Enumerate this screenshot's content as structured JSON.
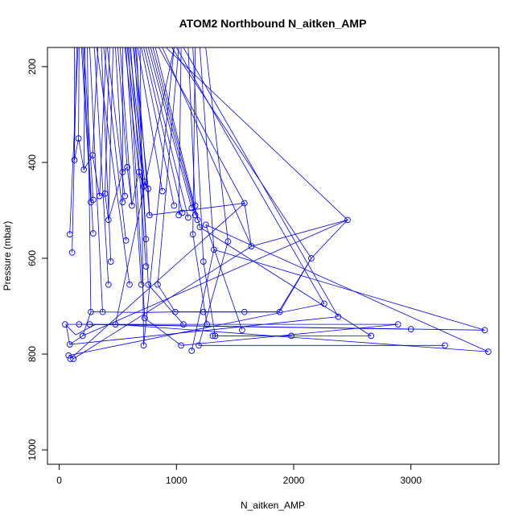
{
  "chart_data": {
    "type": "line",
    "title": "ATOM2 Northbound N_aitken_AMP",
    "xlabel": "N_aitken_AMP",
    "ylabel": "Pressure (mbar)",
    "xlim": [
      -100,
      3750
    ],
    "ylim": [
      160,
      1030
    ],
    "y_reversed": true,
    "grid": false,
    "legend": "none",
    "color": "#0000ff",
    "xticks": [
      0,
      1000,
      2000,
      3000
    ],
    "yticks": [
      200,
      400,
      600,
      800,
      1000
    ],
    "series": [
      {
        "x": [
          130,
          165,
          210,
          285,
          345,
          390,
          420,
          540,
          580,
          620,
          680,
          720,
          730,
          760,
          770,
          1580,
          1640,
          2460,
          2150,
          1870,
          1560,
          980,
          720,
          330,
          270,
          200,
          90,
          60,
          140,
          310
        ],
        "y": [
          395,
          350,
          415,
          385,
          470,
          465,
          520,
          420,
          410,
          490,
          420,
          450,
          440,
          455,
          510,
          485,
          575,
          520,
          600,
          712,
          712,
          712,
          713,
          712,
          712,
          762,
          780,
          740,
          760,
          738
        ]
      }
    ],
    "points": [
      [
        130,
        395
      ],
      [
        165,
        350
      ],
      [
        210,
        415
      ],
      [
        285,
        385
      ],
      [
        345,
        470
      ],
      [
        390,
        465
      ],
      [
        420,
        520
      ],
      [
        540,
        420
      ],
      [
        580,
        410
      ],
      [
        620,
        490
      ],
      [
        680,
        420
      ],
      [
        720,
        450
      ],
      [
        730,
        440
      ],
      [
        760,
        455
      ],
      [
        770,
        510
      ],
      [
        880,
        460
      ],
      [
        980,
        490
      ],
      [
        1050,
        505
      ],
      [
        1100,
        515
      ],
      [
        1130,
        495
      ],
      [
        1160,
        510
      ],
      [
        1180,
        520
      ],
      [
        1200,
        535
      ],
      [
        1580,
        485
      ],
      [
        1640,
        575
      ],
      [
        2460,
        520
      ],
      [
        2150,
        600
      ],
      [
        2260,
        695
      ],
      [
        2380,
        722
      ],
      [
        2890,
        738
      ],
      [
        3000,
        748
      ],
      [
        3630,
        750
      ],
      [
        3660,
        795
      ],
      [
        3290,
        782
      ],
      [
        2660,
        762
      ],
      [
        1980,
        762
      ],
      [
        1560,
        750
      ],
      [
        1330,
        762
      ],
      [
        1310,
        762
      ],
      [
        1190,
        782
      ],
      [
        1130,
        793
      ],
      [
        1040,
        782
      ],
      [
        1060,
        738
      ],
      [
        1260,
        738
      ],
      [
        1880,
        712
      ],
      [
        1580,
        712
      ],
      [
        1230,
        712
      ],
      [
        990,
        712
      ],
      [
        720,
        782
      ],
      [
        730,
        725
      ],
      [
        840,
        655
      ],
      [
        700,
        655
      ],
      [
        600,
        655
      ],
      [
        420,
        655
      ],
      [
        440,
        607
      ],
      [
        570,
        563
      ],
      [
        560,
        470
      ],
      [
        540,
        483
      ],
      [
        370,
        712
      ],
      [
        270,
        712
      ],
      [
        260,
        738
      ],
      [
        170,
        738
      ],
      [
        50,
        738
      ],
      [
        90,
        780
      ],
      [
        80,
        803
      ],
      [
        95,
        810
      ],
      [
        120,
        810
      ],
      [
        200,
        762
      ],
      [
        480,
        738
      ],
      [
        270,
        483
      ],
      [
        290,
        478
      ],
      [
        290,
        548
      ],
      [
        110,
        588
      ],
      [
        90,
        550
      ],
      [
        1320,
        582
      ],
      [
        1440,
        565
      ],
      [
        1230,
        607
      ],
      [
        1140,
        550
      ],
      [
        1250,
        530
      ],
      [
        740,
        560
      ],
      [
        740,
        617
      ],
      [
        760,
        655
      ],
      [
        1020,
        510
      ],
      [
        1160,
        490
      ]
    ],
    "segments": [
      [
        [
          130,
          160
        ],
        [
          130,
          395
        ]
      ],
      [
        [
          170,
          160
        ],
        [
          165,
          350
        ]
      ],
      [
        [
          220,
          160
        ],
        [
          210,
          415
        ]
      ],
      [
        [
          330,
          160
        ],
        [
          285,
          385
        ]
      ],
      [
        [
          400,
          160
        ],
        [
          345,
          470
        ]
      ],
      [
        [
          430,
          160
        ],
        [
          390,
          465
        ]
      ],
      [
        [
          460,
          160
        ],
        [
          420,
          520
        ]
      ],
      [
        [
          480,
          160
        ],
        [
          540,
          420
        ]
      ],
      [
        [
          500,
          160
        ],
        [
          580,
          410
        ]
      ],
      [
        [
          520,
          160
        ],
        [
          620,
          490
        ]
      ],
      [
        [
          560,
          160
        ],
        [
          680,
          420
        ]
      ],
      [
        [
          580,
          160
        ],
        [
          720,
          450
        ]
      ],
      [
        [
          600,
          160
        ],
        [
          730,
          440
        ]
      ],
      [
        [
          630,
          160
        ],
        [
          760,
          455
        ]
      ],
      [
        [
          650,
          160
        ],
        [
          770,
          510
        ]
      ],
      [
        [
          670,
          160
        ],
        [
          880,
          460
        ]
      ],
      [
        [
          700,
          160
        ],
        [
          980,
          490
        ]
      ],
      [
        [
          720,
          160
        ],
        [
          1050,
          505
        ]
      ],
      [
        [
          740,
          160
        ],
        [
          1100,
          515
        ]
      ],
      [
        [
          760,
          160
        ],
        [
          1130,
          495
        ]
      ],
      [
        [
          780,
          160
        ],
        [
          1160,
          510
        ]
      ],
      [
        [
          800,
          160
        ],
        [
          1180,
          520
        ]
      ],
      [
        [
          820,
          160
        ],
        [
          1200,
          535
        ]
      ],
      [
        [
          850,
          160
        ],
        [
          1580,
          485
        ]
      ],
      [
        [
          880,
          160
        ],
        [
          1640,
          575
        ]
      ],
      [
        [
          910,
          160
        ],
        [
          2460,
          520
        ]
      ],
      [
        [
          960,
          160
        ],
        [
          2150,
          600
        ]
      ],
      [
        [
          1000,
          160
        ],
        [
          2260,
          695
        ]
      ],
      [
        [
          1060,
          160
        ],
        [
          2380,
          722
        ]
      ],
      [
        [
          300,
          160
        ],
        [
          420,
          655
        ]
      ],
      [
        [
          320,
          160
        ],
        [
          600,
          655
        ]
      ],
      [
        [
          360,
          160
        ],
        [
          440,
          607
        ]
      ],
      [
        [
          380,
          160
        ],
        [
          570,
          563
        ]
      ],
      [
        [
          410,
          160
        ],
        [
          560,
          470
        ]
      ],
      [
        [
          260,
          160
        ],
        [
          370,
          712
        ]
      ],
      [
        [
          240,
          160
        ],
        [
          270,
          712
        ]
      ],
      [
        [
          200,
          160
        ],
        [
          290,
          548
        ]
      ],
      [
        [
          160,
          160
        ],
        [
          90,
          550
        ]
      ],
      [
        [
          150,
          160
        ],
        [
          110,
          588
        ]
      ],
      [
        [
          190,
          160
        ],
        [
          270,
          483
        ]
      ],
      [
        [
          210,
          160
        ],
        [
          290,
          478
        ]
      ],
      [
        [
          540,
          160
        ],
        [
          540,
          483
        ]
      ],
      [
        [
          570,
          160
        ],
        [
          700,
          655
        ]
      ],
      [
        [
          590,
          160
        ],
        [
          730,
          725
        ]
      ],
      [
        [
          610,
          160
        ],
        [
          740,
          617
        ]
      ],
      [
        [
          640,
          160
        ],
        [
          740,
          560
        ]
      ],
      [
        [
          660,
          160
        ],
        [
          760,
          655
        ]
      ],
      [
        [
          690,
          160
        ],
        [
          720,
          782
        ]
      ],
      [
        [
          980,
          160
        ],
        [
          480,
          738
        ]
      ],
      [
        [
          1020,
          160
        ],
        [
          840,
          655
        ]
      ],
      [
        [
          1040,
          160
        ],
        [
          1020,
          510
        ]
      ],
      [
        [
          1100,
          160
        ],
        [
          1160,
          490
        ]
      ],
      [
        [
          1140,
          160
        ],
        [
          1230,
          607
        ]
      ],
      [
        [
          1160,
          160
        ],
        [
          1140,
          550
        ]
      ],
      [
        [
          1250,
          160
        ],
        [
          1440,
          565
        ]
      ],
      [
        [
          1200,
          160
        ],
        [
          1320,
          582
        ]
      ],
      [
        [
          2460,
          520
        ],
        [
          200,
          762
        ]
      ],
      [
        [
          1580,
          485
        ],
        [
          95,
          810
        ]
      ],
      [
        [
          1640,
          575
        ],
        [
          120,
          810
        ]
      ],
      [
        [
          2150,
          600
        ],
        [
          1880,
          712
        ]
      ],
      [
        [
          2260,
          695
        ],
        [
          80,
          803
        ]
      ],
      [
        [
          2380,
          722
        ],
        [
          90,
          780
        ]
      ],
      [
        [
          2890,
          738
        ],
        [
          50,
          738
        ]
      ],
      [
        [
          3000,
          748
        ],
        [
          170,
          738
        ]
      ],
      [
        [
          3630,
          750
        ],
        [
          260,
          738
        ]
      ],
      [
        [
          3660,
          795
        ],
        [
          480,
          738
        ]
      ],
      [
        [
          3290,
          782
        ],
        [
          1190,
          782
        ]
      ],
      [
        [
          2660,
          762
        ],
        [
          1330,
          762
        ]
      ],
      [
        [
          1980,
          762
        ],
        [
          1310,
          762
        ]
      ],
      [
        [
          1560,
          750
        ],
        [
          1250,
          530
        ]
      ],
      [
        [
          1880,
          712
        ],
        [
          1580,
          712
        ]
      ],
      [
        [
          1580,
          712
        ],
        [
          1230,
          712
        ]
      ],
      [
        [
          1230,
          712
        ],
        [
          990,
          712
        ]
      ],
      [
        [
          990,
          712
        ],
        [
          840,
          655
        ]
      ],
      [
        [
          1040,
          782
        ],
        [
          730,
          725
        ]
      ],
      [
        [
          1060,
          738
        ],
        [
          760,
          655
        ]
      ],
      [
        [
          1260,
          738
        ],
        [
          1140,
          550
        ]
      ],
      [
        [
          1130,
          793
        ],
        [
          1320,
          582
        ]
      ],
      [
        [
          1190,
          782
        ],
        [
          1440,
          565
        ]
      ],
      [
        [
          1330,
          762
        ],
        [
          1230,
          607
        ]
      ],
      [
        [
          720,
          782
        ],
        [
          980,
          160
        ]
      ],
      [
        [
          2660,
          762
        ],
        [
          1200,
          535
        ]
      ],
      [
        [
          3660,
          795
        ],
        [
          1250,
          530
        ]
      ],
      [
        [
          3630,
          750
        ],
        [
          1320,
          582
        ]
      ],
      [
        [
          2890,
          738
        ],
        [
          1040,
          782
        ]
      ]
    ]
  }
}
